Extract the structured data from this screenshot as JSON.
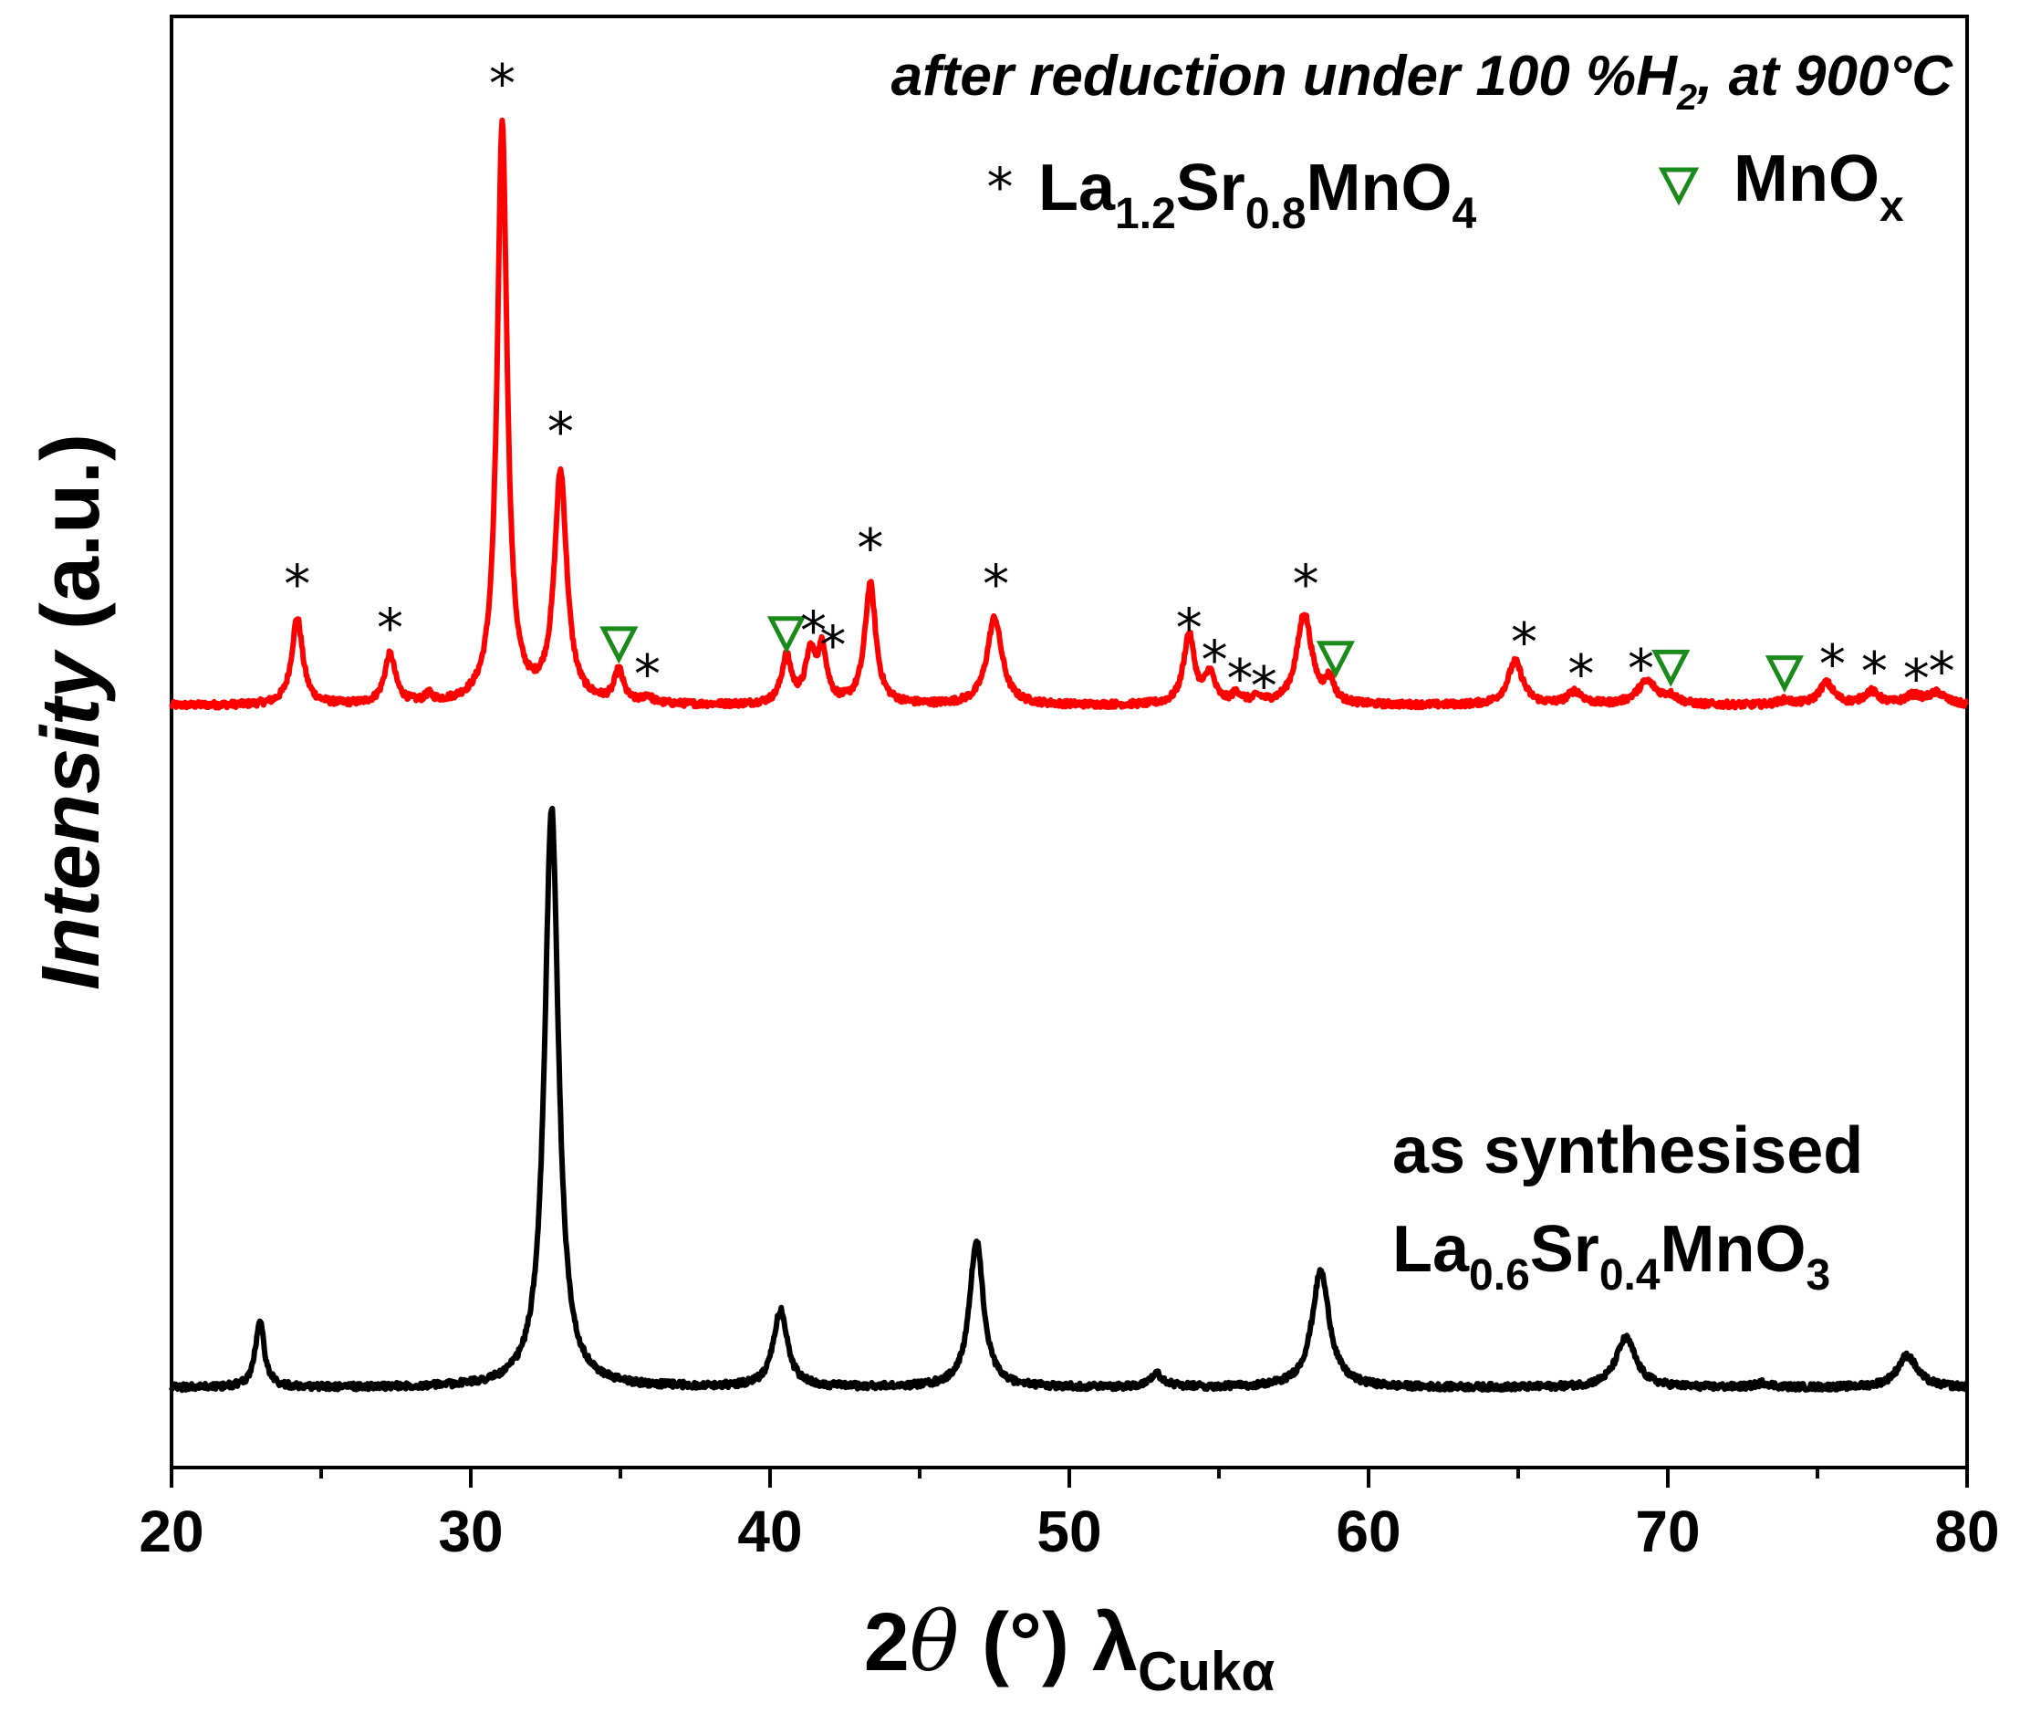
{
  "chart_data": {
    "type": "line",
    "title": "after reduction under 100 %H2, at 900°C",
    "title_parts": {
      "before": "after reduction under 100 %H",
      "sub": "2",
      "after": ", at 900°C"
    },
    "xlabel": "2θ (°) λCukα",
    "xlabel_parts": {
      "main": "2",
      "theta": "θ",
      "unit": " (°) λ",
      "sub": "Cukα"
    },
    "ylabel_parts": {
      "italic": "Intensity",
      "unit": " (a.u.)"
    },
    "xlim": [
      20,
      80
    ],
    "ylim": [
      0,
      100
    ],
    "xticks": [
      20,
      30,
      40,
      50,
      60,
      70,
      80
    ],
    "xtick_labels": [
      "20",
      "30",
      "40",
      "50",
      "60",
      "70",
      "80"
    ],
    "y_ticks_shown": false,
    "legend": [
      {
        "marker": "*",
        "label_parts": [
          "La",
          "1.2",
          "Sr",
          "0.8",
          "MnO",
          "4"
        ],
        "color": "#000000"
      },
      {
        "marker": "triangle-down-open",
        "label_parts": [
          "MnO",
          "x"
        ],
        "color": "#1a8a1a"
      }
    ],
    "series": [
      {
        "name": "after reduction under 100 %H2, at 900°C",
        "color": "#ff0000",
        "baseline": 52.5,
        "peaks": [
          {
            "x": 24.2,
            "h": 6.0,
            "w": 0.22
          },
          {
            "x": 27.3,
            "h": 3.4,
            "w": 0.22
          },
          {
            "x": 28.6,
            "h": 0.5,
            "w": 0.15
          },
          {
            "x": 31.05,
            "h": 40.0,
            "w": 0.2
          },
          {
            "x": 33.0,
            "h": 15.8,
            "w": 0.25
          },
          {
            "x": 34.95,
            "h": 2.2,
            "w": 0.18
          },
          {
            "x": 35.9,
            "h": 0.5,
            "w": 0.18
          },
          {
            "x": 40.55,
            "h": 3.2,
            "w": 0.2
          },
          {
            "x": 41.35,
            "h": 3.3,
            "w": 0.2
          },
          {
            "x": 41.75,
            "h": 3.6,
            "w": 0.18
          },
          {
            "x": 43.35,
            "h": 8.3,
            "w": 0.22
          },
          {
            "x": 47.5,
            "h": 6.0,
            "w": 0.3
          },
          {
            "x": 54.0,
            "h": 4.8,
            "w": 0.22
          },
          {
            "x": 54.7,
            "h": 2.0,
            "w": 0.2
          },
          {
            "x": 55.6,
            "h": 0.7,
            "w": 0.2
          },
          {
            "x": 56.3,
            "h": 0.4,
            "w": 0.2
          },
          {
            "x": 57.85,
            "h": 6.3,
            "w": 0.3
          },
          {
            "x": 58.7,
            "h": 1.5,
            "w": 0.18
          },
          {
            "x": 64.9,
            "h": 3.0,
            "w": 0.3
          },
          {
            "x": 66.9,
            "h": 0.9,
            "w": 0.3
          },
          {
            "x": 69.3,
            "h": 1.6,
            "w": 0.4
          },
          {
            "x": 70.1,
            "h": 0.5,
            "w": 0.3
          },
          {
            "x": 73.9,
            "h": 0.3,
            "w": 0.3
          },
          {
            "x": 75.3,
            "h": 1.5,
            "w": 0.3
          },
          {
            "x": 76.8,
            "h": 0.9,
            "w": 0.3
          },
          {
            "x": 78.2,
            "h": 0.6,
            "w": 0.35
          },
          {
            "x": 79.0,
            "h": 0.8,
            "w": 0.35
          }
        ]
      },
      {
        "name": "as synthesised La0.6Sr0.4MnO3",
        "color": "#000000",
        "baseline": 5.5,
        "peaks": [
          {
            "x": 22.95,
            "h": 4.6,
            "w": 0.18
          },
          {
            "x": 32.7,
            "h": 40.0,
            "w": 0.28
          },
          {
            "x": 40.35,
            "h": 5.3,
            "w": 0.28
          },
          {
            "x": 46.9,
            "h": 10.1,
            "w": 0.28
          },
          {
            "x": 52.9,
            "h": 0.9,
            "w": 0.3
          },
          {
            "x": 58.4,
            "h": 8.0,
            "w": 0.35
          },
          {
            "x": 68.6,
            "h": 3.4,
            "w": 0.4
          },
          {
            "x": 73.2,
            "h": 0.3,
            "w": 0.3
          },
          {
            "x": 78.0,
            "h": 2.2,
            "w": 0.4
          }
        ]
      }
    ],
    "annotation_lines": [
      [
        "as synthesised"
      ],
      [
        "La",
        "0.6",
        "Sr",
        "0.4",
        "MnO",
        "3"
      ]
    ],
    "markers": [
      {
        "type": "star",
        "x": 24.2,
        "y": 61.0
      },
      {
        "type": "star",
        "x": 27.3,
        "y": 58.0
      },
      {
        "type": "star",
        "x": 31.05,
        "y": 95.5
      },
      {
        "type": "star",
        "x": 33.0,
        "y": 71.5
      },
      {
        "type": "tri",
        "x": 34.95,
        "y": 56.8
      },
      {
        "type": "star",
        "x": 35.9,
        "y": 54.8
      },
      {
        "type": "tri",
        "x": 40.55,
        "y": 57.5
      },
      {
        "type": "star",
        "x": 41.45,
        "y": 57.8
      },
      {
        "type": "star",
        "x": 42.1,
        "y": 56.8
      },
      {
        "type": "star",
        "x": 43.35,
        "y": 63.5
      },
      {
        "type": "star",
        "x": 47.55,
        "y": 61.0
      },
      {
        "type": "star",
        "x": 54.0,
        "y": 58.0
      },
      {
        "type": "star",
        "x": 54.85,
        "y": 55.8
      },
      {
        "type": "star",
        "x": 55.7,
        "y": 54.5
      },
      {
        "type": "star",
        "x": 56.5,
        "y": 54.0
      },
      {
        "type": "star",
        "x": 57.9,
        "y": 61.0
      },
      {
        "type": "tri",
        "x": 58.9,
        "y": 55.8
      },
      {
        "type": "star",
        "x": 65.2,
        "y": 57.0
      },
      {
        "type": "star",
        "x": 67.1,
        "y": 54.8
      },
      {
        "type": "star",
        "x": 69.1,
        "y": 55.2
      },
      {
        "type": "tri",
        "x": 70.1,
        "y": 55.2
      },
      {
        "type": "tri",
        "x": 73.9,
        "y": 54.8
      },
      {
        "type": "star",
        "x": 75.5,
        "y": 55.5
      },
      {
        "type": "star",
        "x": 76.9,
        "y": 55.0
      },
      {
        "type": "star",
        "x": 78.3,
        "y": 54.5
      },
      {
        "type": "star",
        "x": 79.15,
        "y": 55.0
      }
    ]
  }
}
